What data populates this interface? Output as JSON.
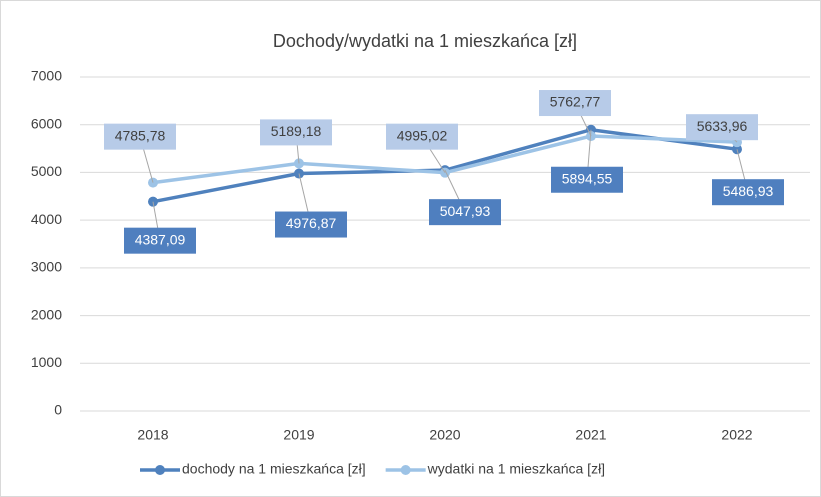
{
  "chart_data": {
    "type": "line",
    "title": "Dochody/wydatki na 1 mieszkańca [zł]",
    "categories": [
      "2018",
      "2019",
      "2020",
      "2021",
      "2022"
    ],
    "series": [
      {
        "name": "dochody na 1 mieszkańca [zł]",
        "color": "#4f81bd",
        "label_bg": "#4f7fbf",
        "label_color": "#ffffff",
        "values": [
          4387.09,
          4976.87,
          5047.93,
          5894.55,
          5486.93
        ],
        "value_labels": [
          "4387,09",
          "4976,87",
          "5047,93",
          "5894,55",
          "5486,93"
        ]
      },
      {
        "name": "wydatki na 1 mieszkańca [zł]",
        "color": "#9dc3e6",
        "label_bg": "#b7cbe8",
        "label_color": "#404040",
        "values": [
          4785.78,
          5189.18,
          4995.02,
          5762.77,
          5633.96
        ],
        "value_labels": [
          "4785,78",
          "5189,18",
          "4995,02",
          "5762,77",
          "5633,96"
        ]
      }
    ],
    "ylim": [
      0,
      7000
    ],
    "yticks": [
      0,
      1000,
      2000,
      3000,
      4000,
      5000,
      6000,
      7000
    ],
    "grid": true
  }
}
